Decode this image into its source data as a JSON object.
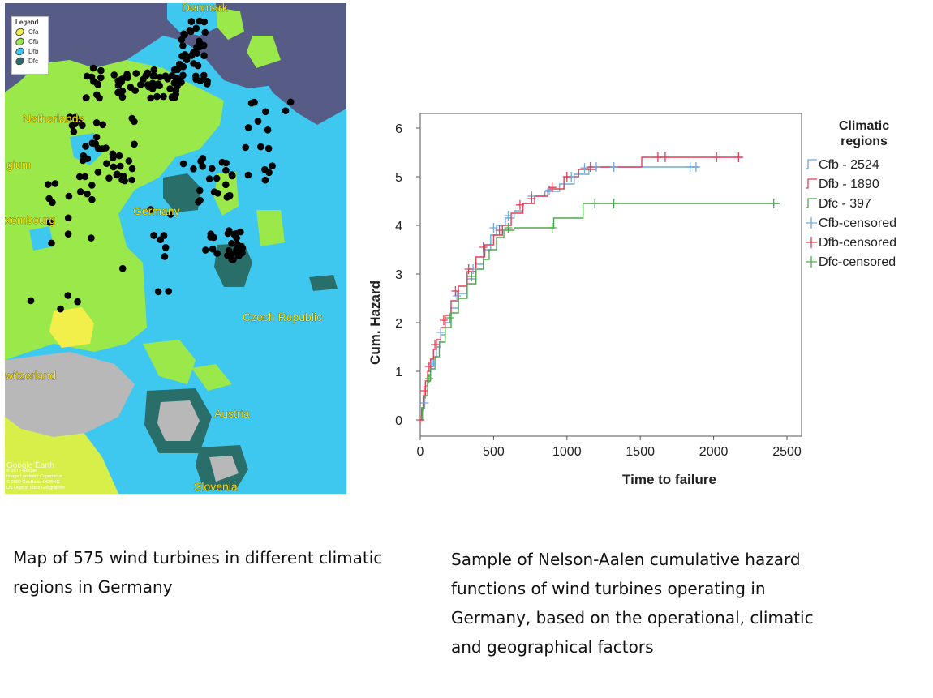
{
  "map": {
    "legend_title": "Legend",
    "legend_items": [
      {
        "label": "Cfa",
        "color": "#f2ef4a"
      },
      {
        "label": "Cfb",
        "color": "#9be84a"
      },
      {
        "label": "Dfb",
        "color": "#3fc8ef"
      },
      {
        "label": "Dfc",
        "color": "#2a6e6a"
      }
    ],
    "places": {
      "denmark": "Denmark",
      "netherlands": "Netherlands",
      "belgium": "gium",
      "luxembourg": "xembourg",
      "germany": "Germany",
      "czech": "Czech Republic",
      "switzerland": "witzerland",
      "austria": "Austria",
      "slovenia": "Slovenia"
    },
    "credit_brand": "Google Earth",
    "credit_lines": [
      "© 2018 Google",
      "Image Landsat / Copernicus",
      "© 2009 GeoBasis-DE/BKG",
      "US Dept of State Geographer"
    ]
  },
  "chart_data": {
    "type": "line",
    "xlabel": "Time to failure",
    "ylabel": "Cum. Hazard",
    "xlim": [
      0,
      2500
    ],
    "ylim": [
      0,
      6
    ],
    "xticks": [
      0,
      500,
      1000,
      1500,
      2000,
      2500
    ],
    "yticks": [
      0,
      1,
      2,
      3,
      4,
      5,
      6
    ],
    "legend_title": "Climatic regions",
    "legend_position": "right",
    "series": [
      {
        "name": "Cfb - 2524",
        "color": "#6fa8e0",
        "points": [
          [
            0,
            0
          ],
          [
            10,
            0.2
          ],
          [
            20,
            0.45
          ],
          [
            35,
            0.7
          ],
          [
            50,
            0.9
          ],
          [
            70,
            1.1
          ],
          [
            90,
            1.3
          ],
          [
            110,
            1.5
          ],
          [
            140,
            1.75
          ],
          [
            170,
            2.0
          ],
          [
            210,
            2.3
          ],
          [
            260,
            2.6
          ],
          [
            320,
            2.9
          ],
          [
            380,
            3.2
          ],
          [
            430,
            3.5
          ],
          [
            480,
            3.8
          ],
          [
            520,
            4.0
          ],
          [
            580,
            4.15
          ],
          [
            640,
            4.3
          ],
          [
            700,
            4.45
          ],
          [
            780,
            4.6
          ],
          [
            850,
            4.7
          ],
          [
            950,
            4.85
          ],
          [
            1050,
            5.05
          ],
          [
            1150,
            5.2
          ],
          [
            1900,
            5.2
          ]
        ]
      },
      {
        "name": "Dfb - 1890",
        "color": "#e0405a",
        "points": [
          [
            0,
            0
          ],
          [
            10,
            0.25
          ],
          [
            20,
            0.5
          ],
          [
            35,
            0.8
          ],
          [
            50,
            1.0
          ],
          [
            70,
            1.25
          ],
          [
            90,
            1.45
          ],
          [
            110,
            1.65
          ],
          [
            140,
            1.9
          ],
          [
            170,
            2.15
          ],
          [
            210,
            2.45
          ],
          [
            260,
            2.75
          ],
          [
            320,
            3.05
          ],
          [
            380,
            3.35
          ],
          [
            440,
            3.6
          ],
          [
            500,
            3.8
          ],
          [
            560,
            4.0
          ],
          [
            620,
            4.25
          ],
          [
            700,
            4.45
          ],
          [
            780,
            4.6
          ],
          [
            870,
            4.75
          ],
          [
            980,
            5.0
          ],
          [
            1080,
            5.15
          ],
          [
            1200,
            5.2
          ],
          [
            1500,
            5.2
          ],
          [
            1510,
            5.4
          ],
          [
            2200,
            5.4
          ]
        ]
      },
      {
        "name": "Dfc - 397",
        "color": "#4caa4c",
        "points": [
          [
            0,
            0
          ],
          [
            15,
            0.25
          ],
          [
            30,
            0.5
          ],
          [
            50,
            0.8
          ],
          [
            70,
            1.05
          ],
          [
            100,
            1.3
          ],
          [
            130,
            1.6
          ],
          [
            170,
            1.9
          ],
          [
            210,
            2.2
          ],
          [
            260,
            2.5
          ],
          [
            320,
            2.8
          ],
          [
            380,
            3.1
          ],
          [
            430,
            3.3
          ],
          [
            470,
            3.5
          ],
          [
            520,
            3.75
          ],
          [
            570,
            3.9
          ],
          [
            640,
            3.95
          ],
          [
            900,
            3.95
          ],
          [
            910,
            4.15
          ],
          [
            1100,
            4.15
          ],
          [
            1110,
            4.45
          ],
          [
            2450,
            4.45
          ]
        ]
      },
      {
        "name": "Cfb-censored",
        "color": "#6fa8e0",
        "marker": "+",
        "points": [
          [
            30,
            0.35
          ],
          [
            80,
            1.15
          ],
          [
            140,
            1.8
          ],
          [
            250,
            2.55
          ],
          [
            360,
            3.1
          ],
          [
            500,
            3.95
          ],
          [
            600,
            4.2
          ],
          [
            760,
            4.6
          ],
          [
            880,
            4.72
          ],
          [
            1030,
            5.0
          ],
          [
            1120,
            5.18
          ],
          [
            1200,
            5.2
          ],
          [
            1320,
            5.2
          ],
          [
            1840,
            5.2
          ],
          [
            1880,
            5.2
          ]
        ]
      },
      {
        "name": "Dfb-censored",
        "color": "#e0405a",
        "marker": "+",
        "points": [
          [
            0,
            0
          ],
          [
            25,
            0.6
          ],
          [
            60,
            1.1
          ],
          [
            100,
            1.55
          ],
          [
            160,
            2.05
          ],
          [
            240,
            2.65
          ],
          [
            330,
            3.1
          ],
          [
            430,
            3.55
          ],
          [
            540,
            3.9
          ],
          [
            680,
            4.42
          ],
          [
            760,
            4.55
          ],
          [
            900,
            4.78
          ],
          [
            1000,
            5.0
          ],
          [
            1160,
            5.2
          ],
          [
            1620,
            5.4
          ],
          [
            1670,
            5.4
          ],
          [
            2020,
            5.4
          ],
          [
            2170,
            5.4
          ]
        ]
      },
      {
        "name": "Dfc-censored",
        "color": "#4caa4c",
        "marker": "+",
        "points": [
          [
            60,
            0.85
          ],
          [
            200,
            2.1
          ],
          [
            350,
            2.95
          ],
          [
            600,
            3.95
          ],
          [
            900,
            3.95
          ],
          [
            1190,
            4.45
          ],
          [
            1320,
            4.45
          ],
          [
            2410,
            4.45
          ]
        ]
      }
    ]
  },
  "captions": {
    "left": "Map of 575 wind turbines in different climatic regions in Germany",
    "right": "Sample of Nelson-Aalen cumulative hazard functions of wind turbines operating in Germany, based on the operational, climatic and geographical factors"
  }
}
